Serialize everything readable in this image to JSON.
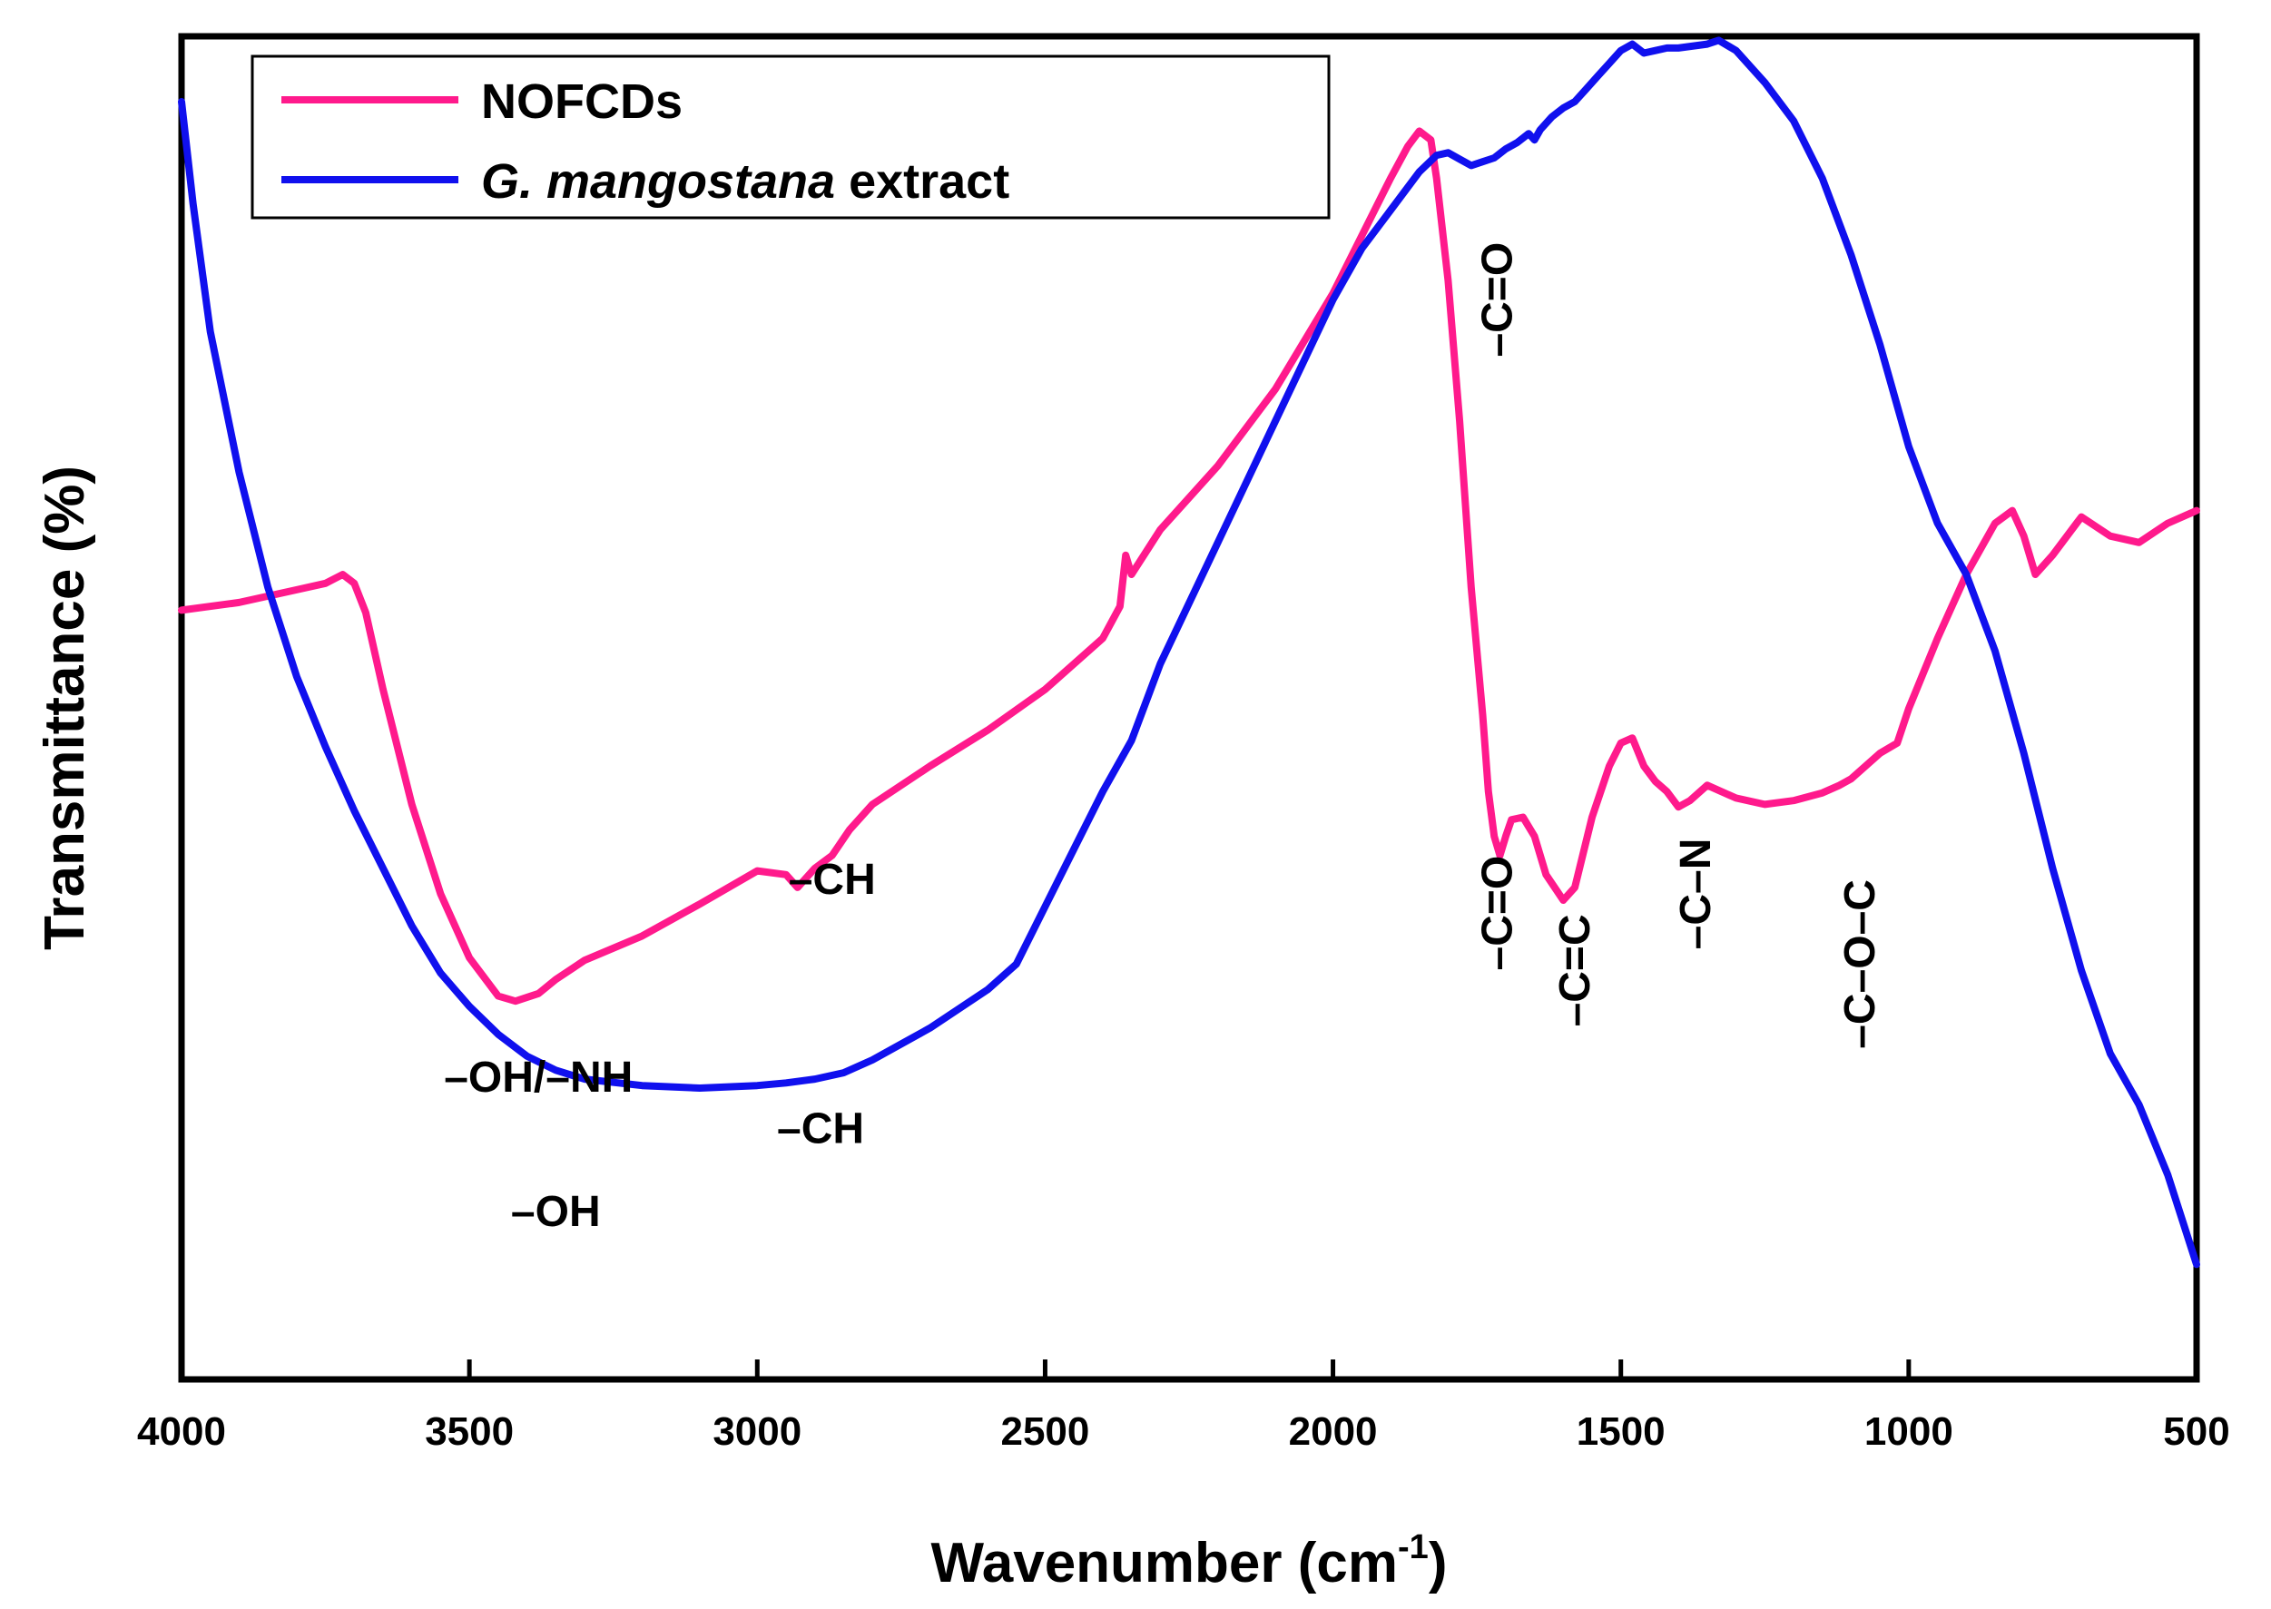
{
  "chart_data": {
    "type": "line",
    "title": "",
    "xlabel": "Wavenumber (cm",
    "xlabel_sup": "-1",
    "xlabel_close": ")",
    "ylabel": "Transmittance (%)",
    "xlim": [
      4000,
      500
    ],
    "ylim": [
      0,
      100
    ],
    "x_reversed": true,
    "y_ticks_shown": false,
    "x_ticks": [
      "4000",
      "3500",
      "3000",
      "2500",
      "2000",
      "1500",
      "1000",
      "500"
    ],
    "legend": {
      "placement": "top-left",
      "entries": [
        {
          "label": "NOFCDs",
          "italic_part": "",
          "color": "#ff1a8c"
        },
        {
          "label": " extract",
          "italic_part": "G. mangostana",
          "color": "#1010ee"
        }
      ]
    },
    "series": [
      {
        "name": "NOFCDs",
        "color": "#ff1a8c",
        "x": [
          4000,
          3900,
          3800,
          3750,
          3720,
          3700,
          3680,
          3650,
          3600,
          3550,
          3500,
          3450,
          3420,
          3380,
          3350,
          3300,
          3200,
          3100,
          3000,
          2950,
          2930,
          2900,
          2870,
          2840,
          2800,
          2700,
          2600,
          2500,
          2400,
          2370,
          2360,
          2350,
          2300,
          2200,
          2100,
          2000,
          1950,
          1900,
          1870,
          1850,
          1830,
          1820,
          1800,
          1780,
          1760,
          1740,
          1730,
          1720,
          1710,
          1700,
          1690,
          1670,
          1650,
          1630,
          1600,
          1580,
          1550,
          1520,
          1500,
          1480,
          1460,
          1440,
          1420,
          1400,
          1380,
          1350,
          1300,
          1250,
          1200,
          1150,
          1120,
          1100,
          1050,
          1020,
          1000,
          950,
          900,
          850,
          820,
          800,
          780,
          750,
          700,
          650,
          600,
          550,
          500
        ],
        "y": [
          60.2,
          60.8,
          61.8,
          62.3,
          63.0,
          62.3,
          60.0,
          54.0,
          45.0,
          38.0,
          33.0,
          30.0,
          29.6,
          30.2,
          31.3,
          32.8,
          34.7,
          37.2,
          39.8,
          39.5,
          38.5,
          40.0,
          41.0,
          43.0,
          45.0,
          48.0,
          50.8,
          54.0,
          58.0,
          60.5,
          64.5,
          63.0,
          66.5,
          71.5,
          77.5,
          85.0,
          89.5,
          94.0,
          96.5,
          97.7,
          97.0,
          94.0,
          86.0,
          75.0,
          62.0,
          52.0,
          46.0,
          42.5,
          41.0,
          42.5,
          43.8,
          44.0,
          42.5,
          39.5,
          37.5,
          38.5,
          44.0,
          48.0,
          49.8,
          50.2,
          48.0,
          46.8,
          46.0,
          44.8,
          45.3,
          46.5,
          45.5,
          45.0,
          45.3,
          45.9,
          46.5,
          47.0,
          49.0,
          49.8,
          52.5,
          58.0,
          63.0,
          67.0,
          68.0,
          66.0,
          63.0,
          64.5,
          67.5,
          66.0,
          65.5,
          67.0,
          68.0
        ]
      },
      {
        "name": "G. mangostana extract",
        "color": "#1010ee",
        "x": [
          4000,
          3980,
          3950,
          3900,
          3850,
          3800,
          3750,
          3700,
          3650,
          3600,
          3550,
          3500,
          3450,
          3400,
          3350,
          3300,
          3200,
          3100,
          3000,
          2950,
          2900,
          2850,
          2800,
          2700,
          2600,
          2550,
          2500,
          2450,
          2400,
          2350,
          2300,
          2200,
          2100,
          2000,
          1950,
          1900,
          1850,
          1820,
          1800,
          1780,
          1760,
          1740,
          1720,
          1700,
          1680,
          1660,
          1650,
          1640,
          1620,
          1600,
          1580,
          1560,
          1540,
          1520,
          1500,
          1480,
          1460,
          1440,
          1420,
          1400,
          1350,
          1330,
          1300,
          1250,
          1200,
          1150,
          1100,
          1050,
          1000,
          950,
          900,
          850,
          800,
          750,
          700,
          650,
          600,
          550,
          500
        ],
        "y": [
          100.0,
          92.0,
          82.0,
          71.0,
          62.0,
          55.0,
          49.5,
          44.5,
          40.0,
          35.5,
          31.8,
          29.2,
          27.0,
          25.3,
          24.2,
          23.5,
          23.0,
          22.8,
          23.0,
          23.2,
          23.5,
          24.0,
          25.0,
          27.5,
          30.5,
          32.5,
          37.0,
          41.5,
          46.0,
          50.0,
          56.0,
          65.5,
          75.0,
          84.5,
          88.5,
          91.5,
          94.5,
          95.8,
          96.0,
          95.5,
          95.0,
          95.3,
          95.6,
          96.3,
          96.8,
          97.5,
          97.0,
          97.8,
          98.8,
          99.5,
          100.0,
          101.0,
          102.0,
          103.0,
          104.0,
          104.5,
          103.8,
          104.0,
          104.2,
          104.2,
          104.5,
          104.8,
          104.0,
          101.5,
          98.5,
          94.0,
          88.0,
          81.0,
          73.0,
          67.0,
          63.0,
          57.0,
          49.0,
          40.0,
          32.0,
          25.5,
          21.5,
          16.0,
          9.0
        ]
      }
    ],
    "annotations": [
      {
        "text": "–OH/–NH",
        "x": 3380,
        "y": 22.5,
        "rotate": false
      },
      {
        "text": "–CH",
        "x": 2870,
        "y": 38.0,
        "rotate": false
      },
      {
        "text": "–OH",
        "x": 3350,
        "y": 12.0,
        "rotate": false
      },
      {
        "text": "–CH",
        "x": 2890,
        "y": 18.5,
        "rotate": false
      },
      {
        "text": "–C=O",
        "x": 1715,
        "y": 84.5,
        "rotate": true
      },
      {
        "text": "–C=O",
        "x": 1715,
        "y": 36.5,
        "rotate": true
      },
      {
        "text": "–C=C",
        "x": 1580,
        "y": 32.0,
        "rotate": true
      },
      {
        "text": "–C–N",
        "x": 1370,
        "y": 38.0,
        "rotate": true
      },
      {
        "text": "–C–O–C",
        "x": 1085,
        "y": 32.5,
        "rotate": true
      }
    ]
  }
}
